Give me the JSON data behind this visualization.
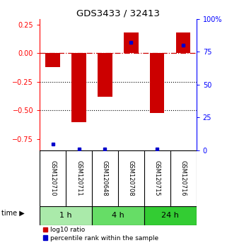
{
  "title": "GDS3433 / 32413",
  "samples": [
    "GSM120710",
    "GSM120711",
    "GSM120648",
    "GSM120708",
    "GSM120715",
    "GSM120716"
  ],
  "groups": [
    {
      "label": "1 h",
      "color": "#aaeaaa"
    },
    {
      "label": "4 h",
      "color": "#66dd66"
    },
    {
      "label": "24 h",
      "color": "#33cc33"
    }
  ],
  "log10_ratio": [
    -0.12,
    -0.6,
    -0.38,
    0.18,
    -0.52,
    0.18
  ],
  "percentile_rank": [
    5,
    1,
    1,
    82,
    1,
    80
  ],
  "bar_color": "#cc0000",
  "dot_color": "#0000cc",
  "ylim_left": [
    -0.85,
    0.3
  ],
  "ylim_right": [
    0,
    100
  ],
  "yticks_left": [
    0.25,
    0.0,
    -0.25,
    -0.5,
    -0.75
  ],
  "yticks_right": [
    100,
    75,
    50,
    25,
    0
  ],
  "hline_zero_color": "#cc0000",
  "hline_grid_values": [
    -0.25,
    -0.5
  ],
  "legend_red_label": "log10 ratio",
  "legend_blue_label": "percentile rank within the sample",
  "sample_bg": "#bbbbbb",
  "bar_width": 0.55
}
